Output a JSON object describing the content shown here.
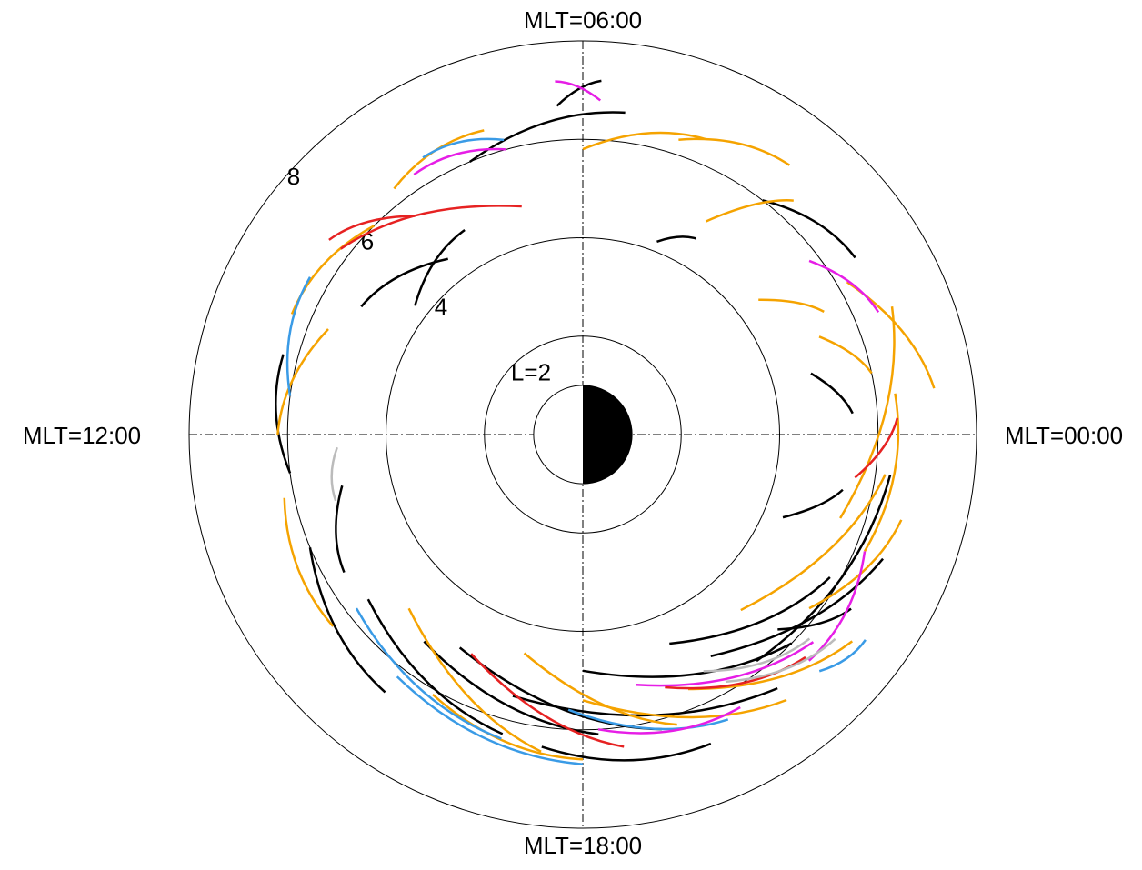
{
  "chart_data": {
    "type": "polar-orbits",
    "angle_labels": {
      "top": "MLT=06:00",
      "left": "MLT=12:00",
      "right": "MLT=00:00",
      "bottom": "MLT=18:00"
    },
    "rlim": [
      0,
      8
    ],
    "rticks": [
      {
        "value": 2,
        "label": "L=2"
      },
      4,
      6,
      8
    ],
    "earth_radius": 1,
    "series": [
      {
        "color": "#000000",
        "segments": [
          [
            5.0,
            16.0,
            6.2,
            19.0
          ],
          [
            5.5,
            17.0,
            6.5,
            20.5
          ],
          [
            4.6,
            19.5,
            5.8,
            22.0
          ],
          [
            5.2,
            20.0,
            6.6,
            22.5
          ],
          [
            5.8,
            20.5,
            6.3,
            23.5
          ],
          [
            4.8,
            18.0,
            6.0,
            21.0
          ],
          [
            6.0,
            13.5,
            6.6,
            15.5
          ],
          [
            5.5,
            14.5,
            6.3,
            17.0
          ],
          [
            4.5,
            8.5,
            5.2,
            10.0
          ],
          [
            6.0,
            7.5,
            6.6,
            5.5
          ],
          [
            4.3,
            9.5,
            4.8,
            8.0
          ],
          [
            6.0,
            3.5,
            6.6,
            2.2
          ],
          [
            4.8,
            1.0,
            5.5,
            0.3
          ],
          [
            4.4,
            22.5,
            5.4,
            23.2
          ],
          [
            6.4,
            17.5,
            6.8,
            19.5
          ],
          [
            5.0,
            12.8,
            5.6,
            14.0
          ],
          [
            6.3,
            11.0,
            6.0,
            12.5
          ],
          [
            5.6,
            21.0,
            6.5,
            21.8
          ],
          [
            4.2,
            4.6,
            4.6,
            4.0
          ],
          [
            6.7,
            6.3,
            7.2,
            5.8
          ],
          [
            5.3,
            15.5,
            6.1,
            18.2
          ]
        ]
      },
      {
        "color": "#f5a300",
        "segments": [
          [
            5.5,
            22.8,
            6.8,
            1.5
          ],
          [
            6.2,
            2.0,
            7.2,
            0.5
          ],
          [
            5.0,
            4.0,
            6.4,
            3.2
          ],
          [
            5.8,
            6.0,
            6.5,
            4.5
          ],
          [
            6.0,
            9.0,
            6.4,
            10.5
          ],
          [
            5.6,
            10.5,
            6.2,
            12.0
          ],
          [
            6.2,
            12.8,
            6.4,
            14.5
          ],
          [
            5.0,
            15.0,
            6.5,
            17.5
          ],
          [
            5.4,
            18.0,
            6.8,
            20.5
          ],
          [
            5.6,
            19.5,
            6.9,
            21.5
          ],
          [
            4.8,
            20.8,
            6.2,
            23.5
          ],
          [
            5.8,
            21.5,
            6.7,
            23.0
          ],
          [
            6.4,
            0.5,
            6.2,
            22.5
          ],
          [
            4.6,
            17.0,
            6.2,
            19.2
          ],
          [
            6.5,
            7.2,
            6.3,
            8.5
          ],
          [
            5.2,
            1.5,
            6.0,
            0.8
          ],
          [
            6.1,
            16.0,
            6.6,
            18.0
          ],
          [
            4.5,
            2.5,
            5.5,
            1.8
          ],
          [
            6.3,
            4.8,
            6.9,
            3.5
          ]
        ]
      },
      {
        "color": "#3a9be6",
        "segments": [
          [
            5.8,
            14.5,
            6.4,
            17.0
          ],
          [
            6.2,
            15.5,
            6.7,
            18.0
          ],
          [
            6.4,
            10.0,
            6.0,
            11.5
          ],
          [
            6.5,
            8.0,
            6.2,
            7.0
          ],
          [
            6.8,
            21.0,
            7.1,
            21.6
          ],
          [
            5.6,
            17.8,
            6.5,
            19.8
          ]
        ]
      },
      {
        "color": "#e61ee6",
        "segments": [
          [
            6.0,
            18.2,
            6.4,
            20.0
          ],
          [
            6.5,
            21.0,
            6.2,
            22.5
          ],
          [
            5.8,
            2.5,
            6.5,
            1.5
          ],
          [
            6.8,
            5.8,
            7.2,
            6.3
          ],
          [
            6.0,
            7.0,
            6.3,
            8.2
          ],
          [
            5.2,
            18.8,
            6.3,
            21.2
          ]
        ]
      },
      {
        "color": "#e62222",
        "segments": [
          [
            5.0,
            16.2,
            6.4,
            18.5
          ],
          [
            5.6,
            8.5,
            6.5,
            9.5
          ],
          [
            4.8,
            7.0,
            6.2,
            9.5
          ],
          [
            5.6,
            23.4,
            6.4,
            0.2
          ],
          [
            5.4,
            19.2,
            6.4,
            21.0
          ]
        ]
      },
      {
        "color": "#bbbbbb",
        "segments": [
          [
            5.4,
            19.8,
            6.2,
            21.2
          ],
          [
            5.0,
            12.2,
            5.2,
            13.0
          ],
          [
            5.8,
            20.0,
            6.6,
            21.4
          ]
        ]
      }
    ]
  }
}
